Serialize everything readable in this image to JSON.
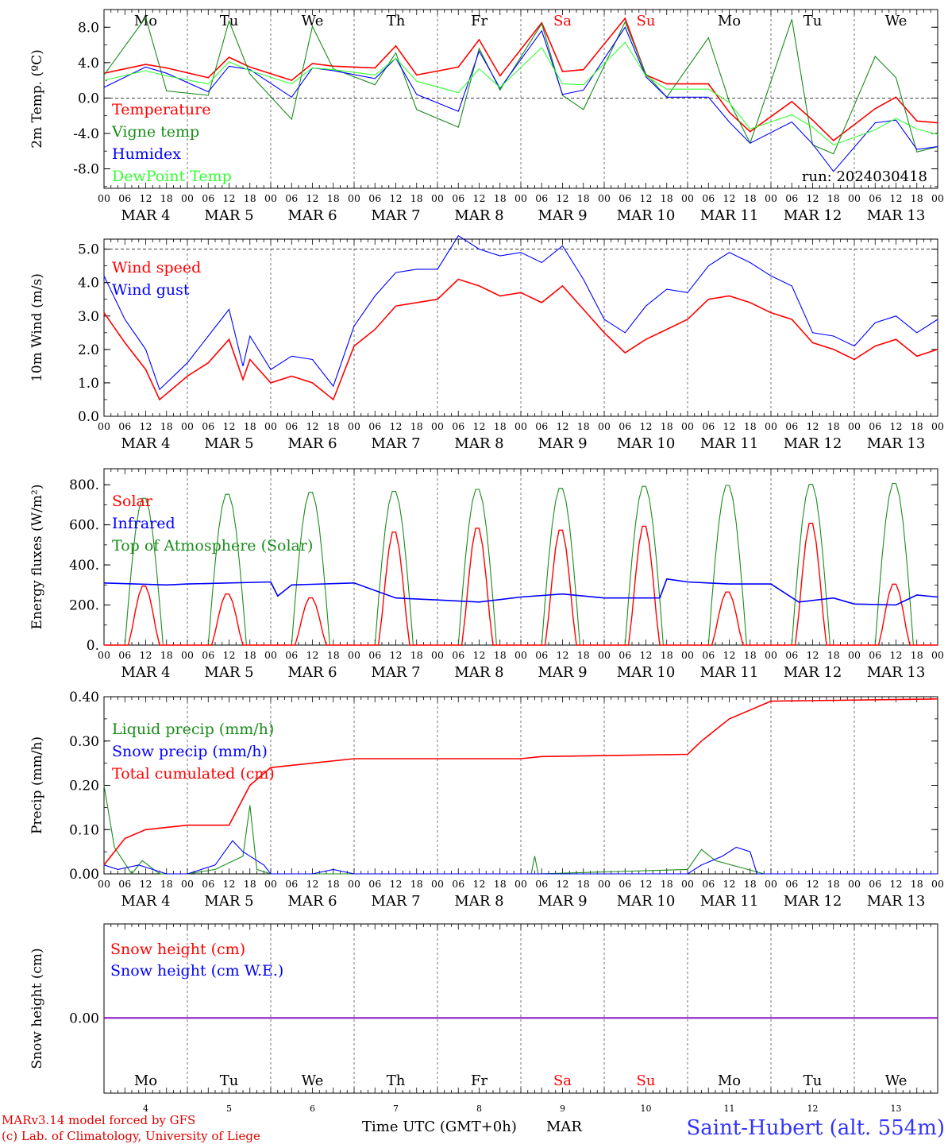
{
  "colors": {
    "red": "#ff0000",
    "green": "#1a8c1a",
    "lightgreen": "#33ff33",
    "blue": "#0000ff",
    "purple": "#8000c0",
    "axis": "#000000",
    "gridline": "#555555",
    "footer_red": "#e00000",
    "station_blue": "#3333ff"
  },
  "days": {
    "weekday": [
      "Mo",
      "Tu",
      "We",
      "Th",
      "Fr",
      "Sa",
      "Su",
      "Mo",
      "Tu",
      "We"
    ],
    "weekend_flags": [
      false,
      false,
      false,
      false,
      false,
      true,
      true,
      false,
      false,
      false
    ],
    "date_labels": [
      "MAR  4",
      "MAR  5",
      "MAR  6",
      "MAR  7",
      "MAR  8",
      "MAR  9",
      "MAR 10",
      "MAR 11",
      "MAR 12",
      "MAR 13"
    ],
    "day_numbers": [
      "4",
      "5",
      "6",
      "7",
      "8",
      "9",
      "10",
      "11",
      "12",
      "13"
    ],
    "hour_ticks": [
      "00",
      "06",
      "12",
      "18"
    ],
    "final_tick": "00"
  },
  "footer": {
    "model_line": "MARv3.14 model forced by GFS",
    "credit_line": "(c) Lab. of Climatology, University of Liege",
    "xlabel": "Time UTC (GMT+0h)",
    "month": "MAR",
    "station": "Saint-Hubert (alt. 554m)"
  },
  "chart_data": [
    {
      "type": "line",
      "ylabel": "2m Temp. (ºC)",
      "ylim": [
        -10.2,
        10
      ],
      "yticks": [
        "8.0",
        "4.0",
        "0.0",
        "-4.0",
        "-8.0"
      ],
      "ytick_values": [
        8,
        4,
        0,
        -4,
        -8
      ],
      "ref_line": 0,
      "annotation": "run: 2024030418",
      "x_hours": [
        0,
        12,
        18,
        30,
        36,
        42,
        54,
        60,
        66,
        78,
        84,
        90,
        102,
        108,
        114,
        126,
        132,
        138,
        150,
        156,
        162,
        174,
        180,
        186,
        198,
        204,
        210,
        222,
        228,
        234,
        240
      ],
      "series": [
        {
          "name": "Temperature",
          "color": "red",
          "values": [
            2.8,
            3.8,
            3.4,
            2.3,
            4.6,
            3.5,
            2.0,
            3.9,
            3.6,
            3.4,
            5.9,
            2.6,
            3.5,
            6.6,
            2.5,
            8.5,
            3.0,
            3.2,
            9.0,
            2.6,
            1.6,
            1.6,
            -1.6,
            -3.8,
            -0.4,
            -2.5,
            -4.8,
            -1.2,
            0.1,
            -2.6,
            -2.8
          ]
        },
        {
          "name": "Vigne temp",
          "color": "green",
          "values": [
            2.6,
            9.1,
            0.8,
            0.3,
            8.7,
            2.7,
            -2.4,
            8.1,
            3.3,
            1.5,
            5.1,
            -1.3,
            -3.3,
            5.6,
            0.9,
            8.4,
            0.3,
            -1.3,
            8.6,
            2.7,
            0.1,
            6.8,
            -0.4,
            -5.1,
            8.9,
            -5.3,
            -6.3,
            4.7,
            2.3,
            -6.1,
            -5.5
          ]
        },
        {
          "name": "Humidex",
          "color": "blue",
          "values": [
            1.2,
            3.5,
            2.8,
            0.7,
            3.6,
            3.2,
            0.1,
            3.4,
            3.1,
            2.2,
            4.5,
            0.4,
            -1.5,
            5.3,
            1.1,
            7.6,
            0.4,
            0.9,
            8.0,
            2.4,
            0.1,
            0.1,
            -2.7,
            -5.1,
            -2.7,
            -5.2,
            -8.3,
            -2.8,
            -2.5,
            -5.8,
            -5.5
          ]
        },
        {
          "name": "DewPoint Temp",
          "color": "lightgreen",
          "values": [
            2.0,
            3.1,
            2.5,
            1.6,
            4.1,
            3.1,
            1.6,
            3.4,
            3.2,
            2.6,
            4.5,
            1.9,
            0.6,
            3.3,
            1.2,
            5.7,
            1.6,
            1.5,
            6.3,
            2.5,
            1.0,
            1.0,
            -0.5,
            -3.5,
            -1.9,
            -3.3,
            -5.3,
            -3.6,
            -2.3,
            -3.5,
            -4.1
          ]
        }
      ]
    },
    {
      "type": "line",
      "ylabel": "10m Wind (m/s)",
      "ylim": [
        0,
        5.3
      ],
      "yticks": [
        "5.0",
        "4.0",
        "3.0",
        "2.0",
        "1.0",
        "0.0"
      ],
      "ytick_values": [
        5,
        4,
        3,
        2,
        1,
        0
      ],
      "ref_line": 5,
      "x_hours": [
        0,
        6,
        12,
        16,
        24,
        30,
        36,
        40,
        42,
        48,
        54,
        60,
        66,
        72,
        78,
        84,
        90,
        96,
        102,
        108,
        114,
        120,
        126,
        132,
        138,
        144,
        150,
        156,
        162,
        168,
        174,
        180,
        186,
        192,
        198,
        204,
        210,
        216,
        222,
        228,
        234,
        240
      ],
      "series": [
        {
          "name": "Wind speed",
          "color": "red",
          "values": [
            3.1,
            2.2,
            1.4,
            0.5,
            1.2,
            1.6,
            2.3,
            1.1,
            1.7,
            1.0,
            1.2,
            1.0,
            0.5,
            2.1,
            2.6,
            3.3,
            3.4,
            3.5,
            4.1,
            3.9,
            3.6,
            3.7,
            3.4,
            3.9,
            3.2,
            2.5,
            1.9,
            2.3,
            2.6,
            2.9,
            3.5,
            3.6,
            3.4,
            3.1,
            2.9,
            2.2,
            2.0,
            1.7,
            2.1,
            2.3,
            1.8,
            2.0
          ]
        },
        {
          "name": "Wind gust",
          "color": "blue",
          "values": [
            4.2,
            2.9,
            2.0,
            0.8,
            1.6,
            2.4,
            3.2,
            1.5,
            2.4,
            1.4,
            1.8,
            1.7,
            0.9,
            2.7,
            3.6,
            4.3,
            4.4,
            4.4,
            5.4,
            5.0,
            4.8,
            4.9,
            4.6,
            5.1,
            4.1,
            2.9,
            2.5,
            3.3,
            3.8,
            3.7,
            4.5,
            4.9,
            4.6,
            4.2,
            3.9,
            2.5,
            2.4,
            2.1,
            2.8,
            3.0,
            2.5,
            2.9
          ]
        }
      ]
    },
    {
      "type": "line",
      "ylabel": "Energy fluxes (W/m²)",
      "ylim": [
        0,
        880
      ],
      "yticks": [
        "800.",
        "600.",
        "400.",
        "200.",
        "0."
      ],
      "ytick_values": [
        800,
        600,
        400,
        200,
        0
      ],
      "toa_peaks": [
        740,
        760,
        770,
        775,
        785,
        790,
        800,
        805,
        810,
        815
      ],
      "solar_peaks": [
        300,
        260,
        240,
        575,
        595,
        585,
        605,
        270,
        620,
        310
      ],
      "infrared": {
        "x_hours": [
          0,
          18,
          24,
          48,
          50,
          54,
          72,
          84,
          96,
          108,
          120,
          132,
          144,
          160,
          162,
          168,
          180,
          192,
          200,
          210,
          216,
          228,
          234,
          240
        ],
        "values": [
          310,
          300,
          305,
          315,
          245,
          300,
          310,
          235,
          225,
          215,
          240,
          255,
          235,
          235,
          330,
          315,
          305,
          305,
          215,
          235,
          205,
          200,
          250,
          240
        ]
      },
      "series_names": [
        "Solar",
        "Infrared",
        "Top of Atmosphere (Solar)"
      ],
      "series_colors": [
        "red",
        "blue",
        "green"
      ]
    },
    {
      "type": "line",
      "ylabel": "Precip (mm/h)",
      "ylim": [
        0,
        0.4
      ],
      "yticks": [
        "0.40",
        "0.30",
        "0.20",
        "0.10",
        "0.00"
      ],
      "ytick_values": [
        0.4,
        0.3,
        0.2,
        0.1,
        0.0
      ],
      "x_hours_total": [
        0,
        6,
        12,
        24,
        36,
        42,
        48,
        60,
        72,
        96,
        120,
        126,
        168,
        172,
        180,
        192,
        240
      ],
      "series": [
        {
          "name": "Liquid precip (mm/h)",
          "color": "green",
          "x_hours": [
            0,
            3,
            8,
            11,
            16,
            24,
            32,
            40,
            42,
            44,
            48,
            72,
            123,
            124,
            125,
            168,
            172,
            176,
            190,
            240
          ],
          "values": [
            0.2,
            0.06,
            0.0,
            0.03,
            0.0,
            0.0,
            0.01,
            0.04,
            0.155,
            0.01,
            0.0,
            0.0,
            0.0,
            0.04,
            0.0,
            0.01,
            0.055,
            0.03,
            0.0,
            0.0
          ]
        },
        {
          "name": "Snow precip (mm/h)",
          "color": "blue",
          "x_hours": [
            0,
            4,
            10,
            18,
            24,
            32,
            37,
            40,
            42,
            46,
            48,
            60,
            66,
            72,
            168,
            172,
            178,
            182,
            186,
            188,
            240
          ],
          "values": [
            0.02,
            0.01,
            0.02,
            0.0,
            0.0,
            0.02,
            0.075,
            0.05,
            0.04,
            0.02,
            0.0,
            0.0,
            0.01,
            0.0,
            0.0,
            0.02,
            0.04,
            0.06,
            0.05,
            0.0,
            0.0
          ]
        },
        {
          "name": "Total cumulated (cm)",
          "color": "red",
          "values": [
            0.02,
            0.08,
            0.1,
            0.11,
            0.11,
            0.2,
            0.24,
            0.25,
            0.26,
            0.26,
            0.26,
            0.265,
            0.27,
            0.3,
            0.35,
            0.39,
            0.395
          ]
        }
      ]
    },
    {
      "type": "line",
      "ylabel": "Snow height (cm)",
      "ylim": [
        -0.8,
        1.0
      ],
      "yticks": [
        "0.00"
      ],
      "ytick_values": [
        0
      ],
      "series": [
        {
          "name": "Snow height (cm)",
          "color": "red",
          "values": [
            0,
            0
          ]
        },
        {
          "name": "Snow height (cm W.E.)",
          "color": "blue",
          "values": [
            0,
            0
          ]
        }
      ]
    }
  ]
}
